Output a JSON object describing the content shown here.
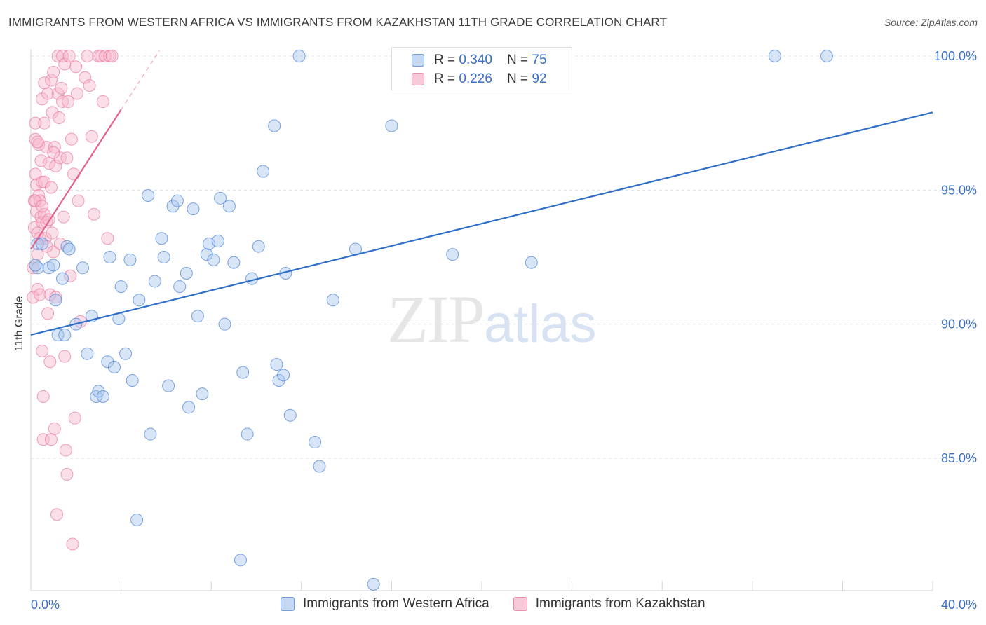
{
  "header": {
    "title": "IMMIGRANTS FROM WESTERN AFRICA VS IMMIGRANTS FROM KAZAKHSTAN 11TH GRADE CORRELATION CHART",
    "source": "Source: ZipAtlas.com"
  },
  "watermark": {
    "zip": "ZIP",
    "atlas": "atlas"
  },
  "legend": {
    "western_africa": {
      "r_label": "R = ",
      "r_value": "0.340",
      "n_label": "N = ",
      "n_value": "75"
    },
    "kazakhstan": {
      "r_label": "R = ",
      "r_value": "0.226",
      "n_label": "N = ",
      "n_value": "92"
    }
  },
  "colors": {
    "blue_fill": "#a9c6ee",
    "blue_stroke": "#4f86d6",
    "blue_line": "#2f6fc7",
    "pink_fill": "#f6b7cb",
    "pink_stroke": "#e8779b",
    "pink_line": "#e2628e",
    "grid": "#dde1e6",
    "axis_text": "#3a6fc4"
  },
  "chart_data": {
    "type": "scatter",
    "title": "IMMIGRANTS FROM WESTERN AFRICA VS IMMIGRANTS FROM KAZAKHSTAN 11TH GRADE CORRELATION CHART",
    "xlabel": "",
    "ylabel": "11th Grade",
    "xlim": [
      0,
      40
    ],
    "ylim": [
      80.0,
      100.6
    ],
    "x_tick_labels": [
      {
        "value": 0,
        "label": "0.0%"
      },
      {
        "value": 40,
        "label": "40.0%"
      }
    ],
    "y_tick_labels": [
      {
        "value": 100,
        "label": "100.0%"
      },
      {
        "value": 95,
        "label": "95.0%"
      },
      {
        "value": 90,
        "label": "90.0%"
      },
      {
        "value": 85,
        "label": "85.0%"
      }
    ],
    "series": [
      {
        "name": "Immigrants from Western Africa",
        "color": "blue",
        "R": 0.34,
        "N": 75,
        "trend": {
          "x": [
            0,
            40
          ],
          "y": [
            89.6,
            97.9
          ]
        },
        "points": [
          [
            0.3,
            93.0
          ],
          [
            0.5,
            93.0
          ],
          [
            0.3,
            92.1
          ],
          [
            0.8,
            92.1
          ],
          [
            1.0,
            92.2
          ],
          [
            1.1,
            90.9
          ],
          [
            1.2,
            89.6
          ],
          [
            1.4,
            91.7
          ],
          [
            1.6,
            92.9
          ],
          [
            1.7,
            92.8
          ],
          [
            2.0,
            90.0
          ],
          [
            2.3,
            92.1
          ],
          [
            2.5,
            88.9
          ],
          [
            2.7,
            90.3
          ],
          [
            2.9,
            87.3
          ],
          [
            3.0,
            87.5
          ],
          [
            3.2,
            87.3
          ],
          [
            3.4,
            88.6
          ],
          [
            3.5,
            92.5
          ],
          [
            3.7,
            88.4
          ],
          [
            3.9,
            90.2
          ],
          [
            4.0,
            91.4
          ],
          [
            4.2,
            88.9
          ],
          [
            4.4,
            92.4
          ],
          [
            4.5,
            87.9
          ],
          [
            4.7,
            82.7
          ],
          [
            4.8,
            90.9
          ],
          [
            5.2,
            94.8
          ],
          [
            5.3,
            85.9
          ],
          [
            5.5,
            91.6
          ],
          [
            5.8,
            93.2
          ],
          [
            5.9,
            92.5
          ],
          [
            6.1,
            87.7
          ],
          [
            6.3,
            94.4
          ],
          [
            6.5,
            94.6
          ],
          [
            6.6,
            91.4
          ],
          [
            6.9,
            91.9
          ],
          [
            7.0,
            86.9
          ],
          [
            7.2,
            94.3
          ],
          [
            7.4,
            90.3
          ],
          [
            7.6,
            87.4
          ],
          [
            7.8,
            92.6
          ],
          [
            7.9,
            93.0
          ],
          [
            8.1,
            92.4
          ],
          [
            8.3,
            93.1
          ],
          [
            8.4,
            94.7
          ],
          [
            8.6,
            90.0
          ],
          [
            8.8,
            94.4
          ],
          [
            9.0,
            92.3
          ],
          [
            9.3,
            81.2
          ],
          [
            9.4,
            88.2
          ],
          [
            9.6,
            85.9
          ],
          [
            9.8,
            91.7
          ],
          [
            10.1,
            92.9
          ],
          [
            10.3,
            95.7
          ],
          [
            10.8,
            97.4
          ],
          [
            10.9,
            88.5
          ],
          [
            11.0,
            87.9
          ],
          [
            11.2,
            88.1
          ],
          [
            11.3,
            91.9
          ],
          [
            11.5,
            86.6
          ],
          [
            11.9,
            100.0
          ],
          [
            12.6,
            85.6
          ],
          [
            12.8,
            84.7
          ],
          [
            13.4,
            90.9
          ],
          [
            14.4,
            92.8
          ],
          [
            15.2,
            80.3
          ],
          [
            16.0,
            97.4
          ],
          [
            16.5,
            100.0
          ],
          [
            18.7,
            92.6
          ],
          [
            22.2,
            92.3
          ],
          [
            33.0,
            100.0
          ],
          [
            35.3,
            100.0
          ],
          [
            1.5,
            89.6
          ],
          [
            0.2,
            92.2
          ]
        ]
      },
      {
        "name": "Immigrants from Kazakhstan",
        "color": "pink",
        "R": 0.226,
        "N": 92,
        "trend": {
          "x": [
            0,
            4.0
          ],
          "y": [
            92.8,
            98.0
          ]
        },
        "trend_dashed": {
          "x": [
            4.0,
            5.7
          ],
          "y": [
            98.0,
            100.2
          ]
        },
        "points": [
          [
            0.1,
            92.1
          ],
          [
            0.1,
            91.0
          ],
          [
            0.15,
            93.6
          ],
          [
            0.15,
            94.6
          ],
          [
            0.2,
            95.6
          ],
          [
            0.2,
            96.9
          ],
          [
            0.2,
            97.5
          ],
          [
            0.25,
            95.2
          ],
          [
            0.25,
            94.2
          ],
          [
            0.3,
            93.4
          ],
          [
            0.3,
            92.6
          ],
          [
            0.3,
            91.3
          ],
          [
            0.35,
            96.7
          ],
          [
            0.35,
            94.8
          ],
          [
            0.4,
            94.6
          ],
          [
            0.4,
            93.2
          ],
          [
            0.45,
            96.1
          ],
          [
            0.45,
            94.0
          ],
          [
            0.5,
            98.4
          ],
          [
            0.5,
            95.3
          ],
          [
            0.5,
            93.8
          ],
          [
            0.5,
            89.0
          ],
          [
            0.55,
            87.3
          ],
          [
            0.55,
            85.7
          ],
          [
            0.6,
            97.5
          ],
          [
            0.6,
            95.3
          ],
          [
            0.6,
            94.1
          ],
          [
            0.65,
            93.2
          ],
          [
            0.7,
            96.6
          ],
          [
            0.7,
            93.8
          ],
          [
            0.75,
            98.6
          ],
          [
            0.75,
            90.4
          ],
          [
            0.8,
            96.0
          ],
          [
            0.8,
            93.9
          ],
          [
            0.85,
            91.1
          ],
          [
            0.85,
            88.6
          ],
          [
            0.9,
            99.1
          ],
          [
            0.9,
            95.1
          ],
          [
            0.9,
            85.7
          ],
          [
            0.95,
            97.9
          ],
          [
            0.95,
            93.4
          ],
          [
            1.0,
            99.4
          ],
          [
            1.0,
            92.7
          ],
          [
            1.05,
            96.6
          ],
          [
            1.05,
            86.1
          ],
          [
            1.1,
            95.9
          ],
          [
            1.1,
            91.0
          ],
          [
            1.15,
            82.9
          ],
          [
            1.2,
            98.6
          ],
          [
            1.2,
            100.0
          ],
          [
            1.25,
            97.7
          ],
          [
            1.3,
            96.2
          ],
          [
            1.3,
            93.0
          ],
          [
            1.35,
            98.8
          ],
          [
            1.4,
            98.3
          ],
          [
            1.4,
            100.0
          ],
          [
            1.45,
            94.0
          ],
          [
            1.5,
            99.7
          ],
          [
            1.5,
            88.8
          ],
          [
            1.55,
            85.3
          ],
          [
            1.6,
            96.2
          ],
          [
            1.6,
            84.4
          ],
          [
            1.65,
            98.3
          ],
          [
            1.7,
            100.0
          ],
          [
            1.75,
            91.8
          ],
          [
            1.8,
            96.9
          ],
          [
            1.85,
            81.8
          ],
          [
            1.9,
            95.6
          ],
          [
            1.95,
            86.5
          ],
          [
            2.0,
            99.6
          ],
          [
            2.05,
            98.6
          ],
          [
            2.1,
            94.6
          ],
          [
            2.2,
            90.1
          ],
          [
            2.4,
            99.2
          ],
          [
            2.5,
            100.0
          ],
          [
            2.6,
            98.9
          ],
          [
            2.7,
            97.0
          ],
          [
            2.8,
            94.1
          ],
          [
            3.0,
            100.0
          ],
          [
            3.1,
            100.0
          ],
          [
            3.2,
            98.3
          ],
          [
            3.3,
            100.0
          ],
          [
            3.5,
            100.0
          ],
          [
            3.4,
            93.2
          ],
          [
            3.6,
            100.0
          ],
          [
            0.4,
            91.1
          ],
          [
            0.6,
            99.0
          ],
          [
            1.0,
            96.4
          ],
          [
            0.3,
            96.8
          ],
          [
            0.2,
            94.6
          ],
          [
            0.5,
            94.4
          ],
          [
            0.7,
            92.9
          ]
        ]
      }
    ]
  },
  "bottom_legend": {
    "western_africa_label": "Immigrants from Western Africa",
    "kazakhstan_label": "Immigrants from Kazakhstan"
  }
}
